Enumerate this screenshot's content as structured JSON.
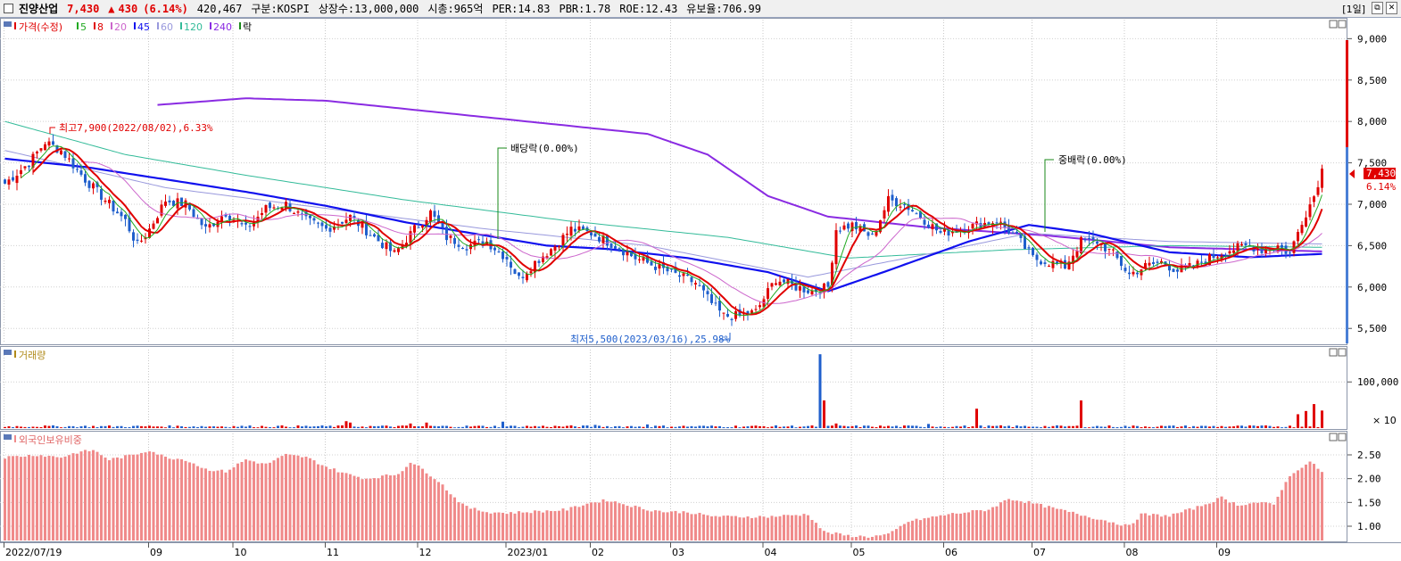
{
  "header": {
    "name": "진양산업",
    "price": "7,430",
    "arrow": "▲",
    "change": "430",
    "change_pct": "(6.14%)",
    "volume": "420,467",
    "market": "구분:KOSPI",
    "shares": "상장수:13,000,000",
    "mcap": "시총:965억",
    "per": "PER:14.83",
    "pbr": "PBR:1.78",
    "roe": "ROE:12.43",
    "float_ratio": "유보율:706.99",
    "period": "[1일]",
    "ctl_restore": "⧉",
    "ctl_close": "✕"
  },
  "legend": {
    "price": "가격(수정)",
    "ma": [
      {
        "label": "5",
        "color": "#22aa22"
      },
      {
        "label": "8",
        "color": "#e00000"
      },
      {
        "label": "20",
        "color": "#cc66cc"
      },
      {
        "label": "45",
        "color": "#1010ee"
      },
      {
        "label": "60",
        "color": "#9999dd"
      },
      {
        "label": "120",
        "color": "#33bb99"
      },
      {
        "label": "240",
        "color": "#8a2be2"
      }
    ],
    "rak": "락",
    "volume": "거래량",
    "foreign": "외국인보유비중"
  },
  "annotations": {
    "high": "최고7,900(2022/08/02),6.33%",
    "low": "최저5,500(2023/03/16),25.98%",
    "dividend": "배당락(0.00%)",
    "stock_div": "중배락(0.00%)",
    "current_price": "7,430",
    "current_pct": "6.14%",
    "vol_unit": "× 10"
  },
  "colors": {
    "up": "#e00000",
    "down": "#1f5fcc",
    "ma5": "#22aa22",
    "ma8": "#e00000",
    "ma20": "#cc66cc",
    "ma45": "#1010ee",
    "ma60": "#9999dd",
    "ma120": "#33bb99",
    "ma240": "#8a2be2",
    "foreign_bar": "#f08a8a"
  },
  "chart_data": {
    "type": "line",
    "x_labels": [
      "2022/07/19",
      "09",
      "10",
      "11",
      "12",
      "2023/01",
      "02",
      "03",
      "04",
      "05",
      "06",
      "07",
      "08",
      "09"
    ],
    "price_axis": {
      "ticks": [
        5500,
        6000,
        6500,
        7000,
        7500,
        8000,
        8500,
        9000
      ],
      "labels": [
        "5,500",
        "6,000",
        "6,500",
        "7,000",
        "7,500",
        "8,000",
        "8,500",
        "9,000"
      ],
      "ylim": [
        5330,
        9230
      ]
    },
    "volume_axis": {
      "ticks": [
        100000
      ],
      "labels": [
        "100,000"
      ],
      "ylim": [
        0,
        170000
      ]
    },
    "foreign_axis": {
      "ticks": [
        1.0,
        1.5,
        2.0,
        2.5
      ],
      "labels": [
        "1.00",
        "1.50",
        "2.00",
        "2.50"
      ],
      "ylim": [
        0.7,
        2.95
      ]
    },
    "price_anchors": [
      [
        0,
        7250
      ],
      [
        6,
        7500
      ],
      [
        10,
        7750
      ],
      [
        14,
        7650
      ],
      [
        20,
        7300
      ],
      [
        25,
        7050
      ],
      [
        30,
        6800
      ],
      [
        33,
        6500
      ],
      [
        36,
        6700
      ],
      [
        40,
        7050
      ],
      [
        45,
        7000
      ],
      [
        50,
        6700
      ],
      [
        55,
        6900
      ],
      [
        60,
        6700
      ],
      [
        65,
        6950
      ],
      [
        70,
        7000
      ],
      [
        75,
        6800
      ],
      [
        80,
        6700
      ],
      [
        86,
        6850
      ],
      [
        92,
        6600
      ],
      [
        97,
        6400
      ],
      [
        102,
        6700
      ],
      [
        106,
        6900
      ],
      [
        110,
        6600
      ],
      [
        115,
        6500
      ],
      [
        120,
        6550
      ],
      [
        125,
        6350
      ],
      [
        128,
        6100
      ],
      [
        132,
        6300
      ],
      [
        137,
        6500
      ],
      [
        141,
        6700
      ],
      [
        146,
        6650
      ],
      [
        152,
        6500
      ],
      [
        157,
        6350
      ],
      [
        162,
        6250
      ],
      [
        167,
        6150
      ],
      [
        172,
        6050
      ],
      [
        176,
        5800
      ],
      [
        179,
        5650
      ],
      [
        183,
        5650
      ],
      [
        187,
        5700
      ],
      [
        192,
        6100
      ],
      [
        197,
        6000
      ],
      [
        201,
        5950
      ],
      [
        205,
        6000
      ],
      [
        207,
        6700
      ],
      [
        211,
        6750
      ],
      [
        216,
        6600
      ],
      [
        220,
        7050
      ],
      [
        224,
        7000
      ],
      [
        228,
        6850
      ],
      [
        233,
        6650
      ],
      [
        238,
        6700
      ],
      [
        242,
        6750
      ],
      [
        247,
        6800
      ],
      [
        252,
        6600
      ],
      [
        256,
        6350
      ],
      [
        260,
        6300
      ],
      [
        264,
        6250
      ],
      [
        268,
        6550
      ],
      [
        272,
        6550
      ],
      [
        276,
        6400
      ],
      [
        280,
        6150
      ],
      [
        284,
        6250
      ],
      [
        288,
        6300
      ],
      [
        292,
        6200
      ],
      [
        296,
        6250
      ],
      [
        300,
        6350
      ],
      [
        305,
        6450
      ],
      [
        310,
        6500
      ],
      [
        313,
        6450
      ],
      [
        317,
        6500
      ],
      [
        320,
        6400
      ],
      [
        323,
        6800
      ],
      [
        326,
        7100
      ],
      [
        328,
        7430
      ]
    ],
    "ma_anchors": {
      "ma45": [
        [
          0,
          7550
        ],
        [
          20,
          7450
        ],
        [
          40,
          7300
        ],
        [
          60,
          7150
        ],
        [
          80,
          6980
        ],
        [
          100,
          6780
        ],
        [
          120,
          6620
        ],
        [
          135,
          6500
        ],
        [
          150,
          6460
        ],
        [
          170,
          6350
        ],
        [
          190,
          6180
        ],
        [
          205,
          5950
        ],
        [
          220,
          6200
        ],
        [
          240,
          6550
        ],
        [
          255,
          6750
        ],
        [
          270,
          6650
        ],
        [
          290,
          6420
        ],
        [
          310,
          6360
        ],
        [
          328,
          6400
        ]
      ],
      "ma60": [
        [
          0,
          7650
        ],
        [
          40,
          7200
        ],
        [
          80,
          6950
        ],
        [
          120,
          6700
        ],
        [
          160,
          6500
        ],
        [
          200,
          6120
        ],
        [
          230,
          6400
        ],
        [
          255,
          6650
        ],
        [
          290,
          6550
        ],
        [
          328,
          6520
        ]
      ],
      "ma120": [
        [
          0,
          8000
        ],
        [
          30,
          7600
        ],
        [
          60,
          7350
        ],
        [
          100,
          7050
        ],
        [
          140,
          6800
        ],
        [
          180,
          6600
        ],
        [
          210,
          6350
        ],
        [
          250,
          6450
        ],
        [
          290,
          6500
        ],
        [
          328,
          6480
        ]
      ],
      "ma240": [
        [
          38,
          8200
        ],
        [
          60,
          8280
        ],
        [
          80,
          8250
        ],
        [
          100,
          8150
        ],
        [
          130,
          8000
        ],
        [
          160,
          7850
        ],
        [
          175,
          7600
        ],
        [
          190,
          7100
        ],
        [
          205,
          6850
        ],
        [
          230,
          6720
        ],
        [
          260,
          6620
        ],
        [
          290,
          6480
        ],
        [
          328,
          6430
        ]
      ]
    },
    "volume_bars": [
      [
        203,
        160000
      ],
      [
        204,
        60000
      ],
      [
        242,
        42000
      ],
      [
        268,
        60000
      ],
      [
        322,
        30000
      ],
      [
        324,
        37000
      ],
      [
        326,
        52000
      ],
      [
        328,
        38000
      ],
      [
        85,
        15000
      ],
      [
        86,
        12000
      ],
      [
        101,
        10000
      ],
      [
        105,
        12000
      ],
      [
        124,
        14000
      ],
      [
        147,
        7000
      ],
      [
        160,
        8000
      ],
      [
        207,
        10000
      ],
      [
        230,
        9000
      ]
    ],
    "foreign_anchors": [
      [
        0,
        2.45
      ],
      [
        8,
        2.5
      ],
      [
        14,
        2.45
      ],
      [
        18,
        2.55
      ],
      [
        22,
        2.6
      ],
      [
        26,
        2.4
      ],
      [
        32,
        2.5
      ],
      [
        36,
        2.6
      ],
      [
        40,
        2.45
      ],
      [
        45,
        2.4
      ],
      [
        50,
        2.2
      ],
      [
        55,
        2.15
      ],
      [
        60,
        2.4
      ],
      [
        65,
        2.3
      ],
      [
        70,
        2.5
      ],
      [
        75,
        2.45
      ],
      [
        80,
        2.25
      ],
      [
        85,
        2.1
      ],
      [
        90,
        2.0
      ],
      [
        98,
        2.1
      ],
      [
        101,
        2.35
      ],
      [
        104,
        2.2
      ],
      [
        108,
        1.95
      ],
      [
        112,
        1.6
      ],
      [
        115,
        1.4
      ],
      [
        120,
        1.3
      ],
      [
        125,
        1.28
      ],
      [
        130,
        1.3
      ],
      [
        135,
        1.32
      ],
      [
        140,
        1.35
      ],
      [
        145,
        1.48
      ],
      [
        150,
        1.55
      ],
      [
        155,
        1.45
      ],
      [
        160,
        1.35
      ],
      [
        165,
        1.3
      ],
      [
        170,
        1.3
      ],
      [
        175,
        1.22
      ],
      [
        180,
        1.2
      ],
      [
        190,
        1.2
      ],
      [
        200,
        1.25
      ],
      [
        204,
        0.88
      ],
      [
        210,
        0.8
      ],
      [
        215,
        0.78
      ],
      [
        220,
        0.82
      ],
      [
        225,
        1.1
      ],
      [
        235,
        1.25
      ],
      [
        245,
        1.35
      ],
      [
        250,
        1.58
      ],
      [
        255,
        1.5
      ],
      [
        260,
        1.4
      ],
      [
        265,
        1.3
      ],
      [
        270,
        1.2
      ],
      [
        275,
        1.1
      ],
      [
        280,
        1.0
      ],
      [
        283,
        1.25
      ],
      [
        290,
        1.22
      ],
      [
        297,
        1.4
      ],
      [
        303,
        1.6
      ],
      [
        307,
        1.45
      ],
      [
        312,
        1.5
      ],
      [
        316,
        1.45
      ],
      [
        319,
        1.95
      ],
      [
        322,
        2.2
      ],
      [
        325,
        2.35
      ],
      [
        328,
        2.15
      ]
    ]
  }
}
